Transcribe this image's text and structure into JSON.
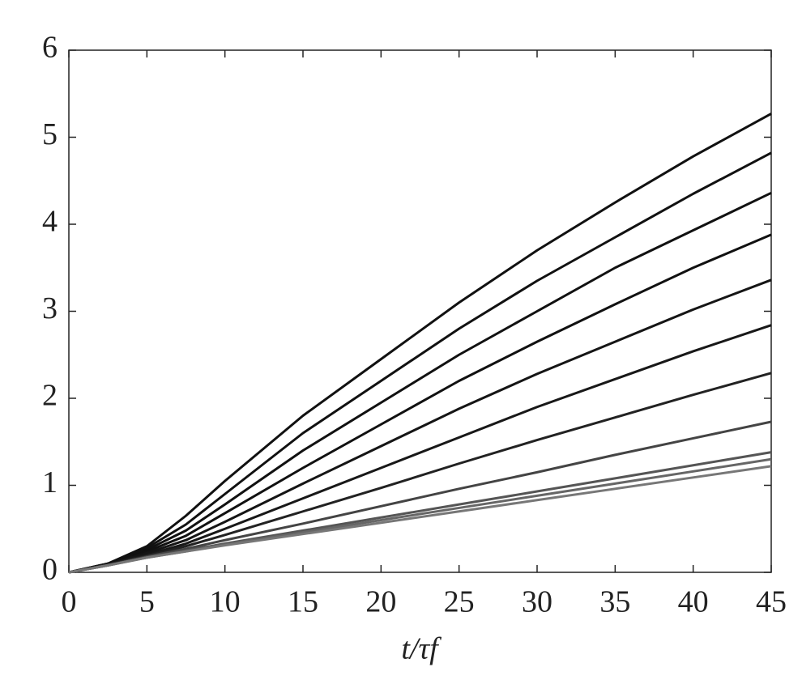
{
  "chart_data": {
    "type": "line",
    "x_label": "t/τf",
    "x": [
      0,
      2.5,
      5,
      7.5,
      10,
      15,
      20,
      25,
      30,
      35,
      40,
      45
    ],
    "series": [
      {
        "color": "#111111",
        "values": [
          0,
          0.1,
          0.3,
          0.65,
          1.05,
          1.8,
          2.45,
          3.1,
          3.7,
          4.25,
          4.78,
          5.27
        ]
      },
      {
        "color": "#111111",
        "values": [
          0,
          0.1,
          0.28,
          0.55,
          0.9,
          1.6,
          2.2,
          2.8,
          3.35,
          3.85,
          4.35,
          4.82
        ]
      },
      {
        "color": "#111111",
        "values": [
          0,
          0.1,
          0.26,
          0.48,
          0.78,
          1.4,
          1.95,
          2.5,
          3.0,
          3.5,
          3.93,
          4.36
        ]
      },
      {
        "color": "#111111",
        "values": [
          0,
          0.09,
          0.24,
          0.42,
          0.68,
          1.2,
          1.7,
          2.2,
          2.65,
          3.08,
          3.5,
          3.88
        ]
      },
      {
        "color": "#151515",
        "values": [
          0,
          0.09,
          0.22,
          0.37,
          0.58,
          1.02,
          1.45,
          1.88,
          2.28,
          2.65,
          3.02,
          3.36
        ]
      },
      {
        "color": "#181818",
        "values": [
          0,
          0.09,
          0.2,
          0.33,
          0.5,
          0.85,
          1.2,
          1.55,
          1.9,
          2.22,
          2.54,
          2.84
        ]
      },
      {
        "color": "#222222",
        "values": [
          0,
          0.09,
          0.19,
          0.3,
          0.43,
          0.7,
          0.97,
          1.25,
          1.52,
          1.78,
          2.04,
          2.29
        ]
      },
      {
        "color": "#444444",
        "values": [
          0,
          0.08,
          0.18,
          0.27,
          0.37,
          0.56,
          0.76,
          0.96,
          1.15,
          1.35,
          1.54,
          1.73
        ]
      },
      {
        "color": "#555555",
        "values": [
          0,
          0.08,
          0.17,
          0.25,
          0.33,
          0.48,
          0.63,
          0.78,
          0.93,
          1.08,
          1.23,
          1.38
        ]
      },
      {
        "color": "#666666",
        "values": [
          0,
          0.08,
          0.17,
          0.24,
          0.32,
          0.46,
          0.6,
          0.74,
          0.88,
          1.02,
          1.16,
          1.3
        ]
      },
      {
        "color": "#777777",
        "values": [
          0,
          0.08,
          0.17,
          0.24,
          0.31,
          0.44,
          0.57,
          0.7,
          0.83,
          0.96,
          1.09,
          1.22
        ]
      }
    ],
    "xlim": [
      0,
      45
    ],
    "xticks": [
      0,
      5,
      10,
      15,
      20,
      25,
      30,
      35,
      40,
      45
    ],
    "ylim": [
      0,
      6
    ],
    "yticks": [
      0,
      1,
      2,
      3,
      4,
      5,
      6
    ],
    "grid": false
  }
}
